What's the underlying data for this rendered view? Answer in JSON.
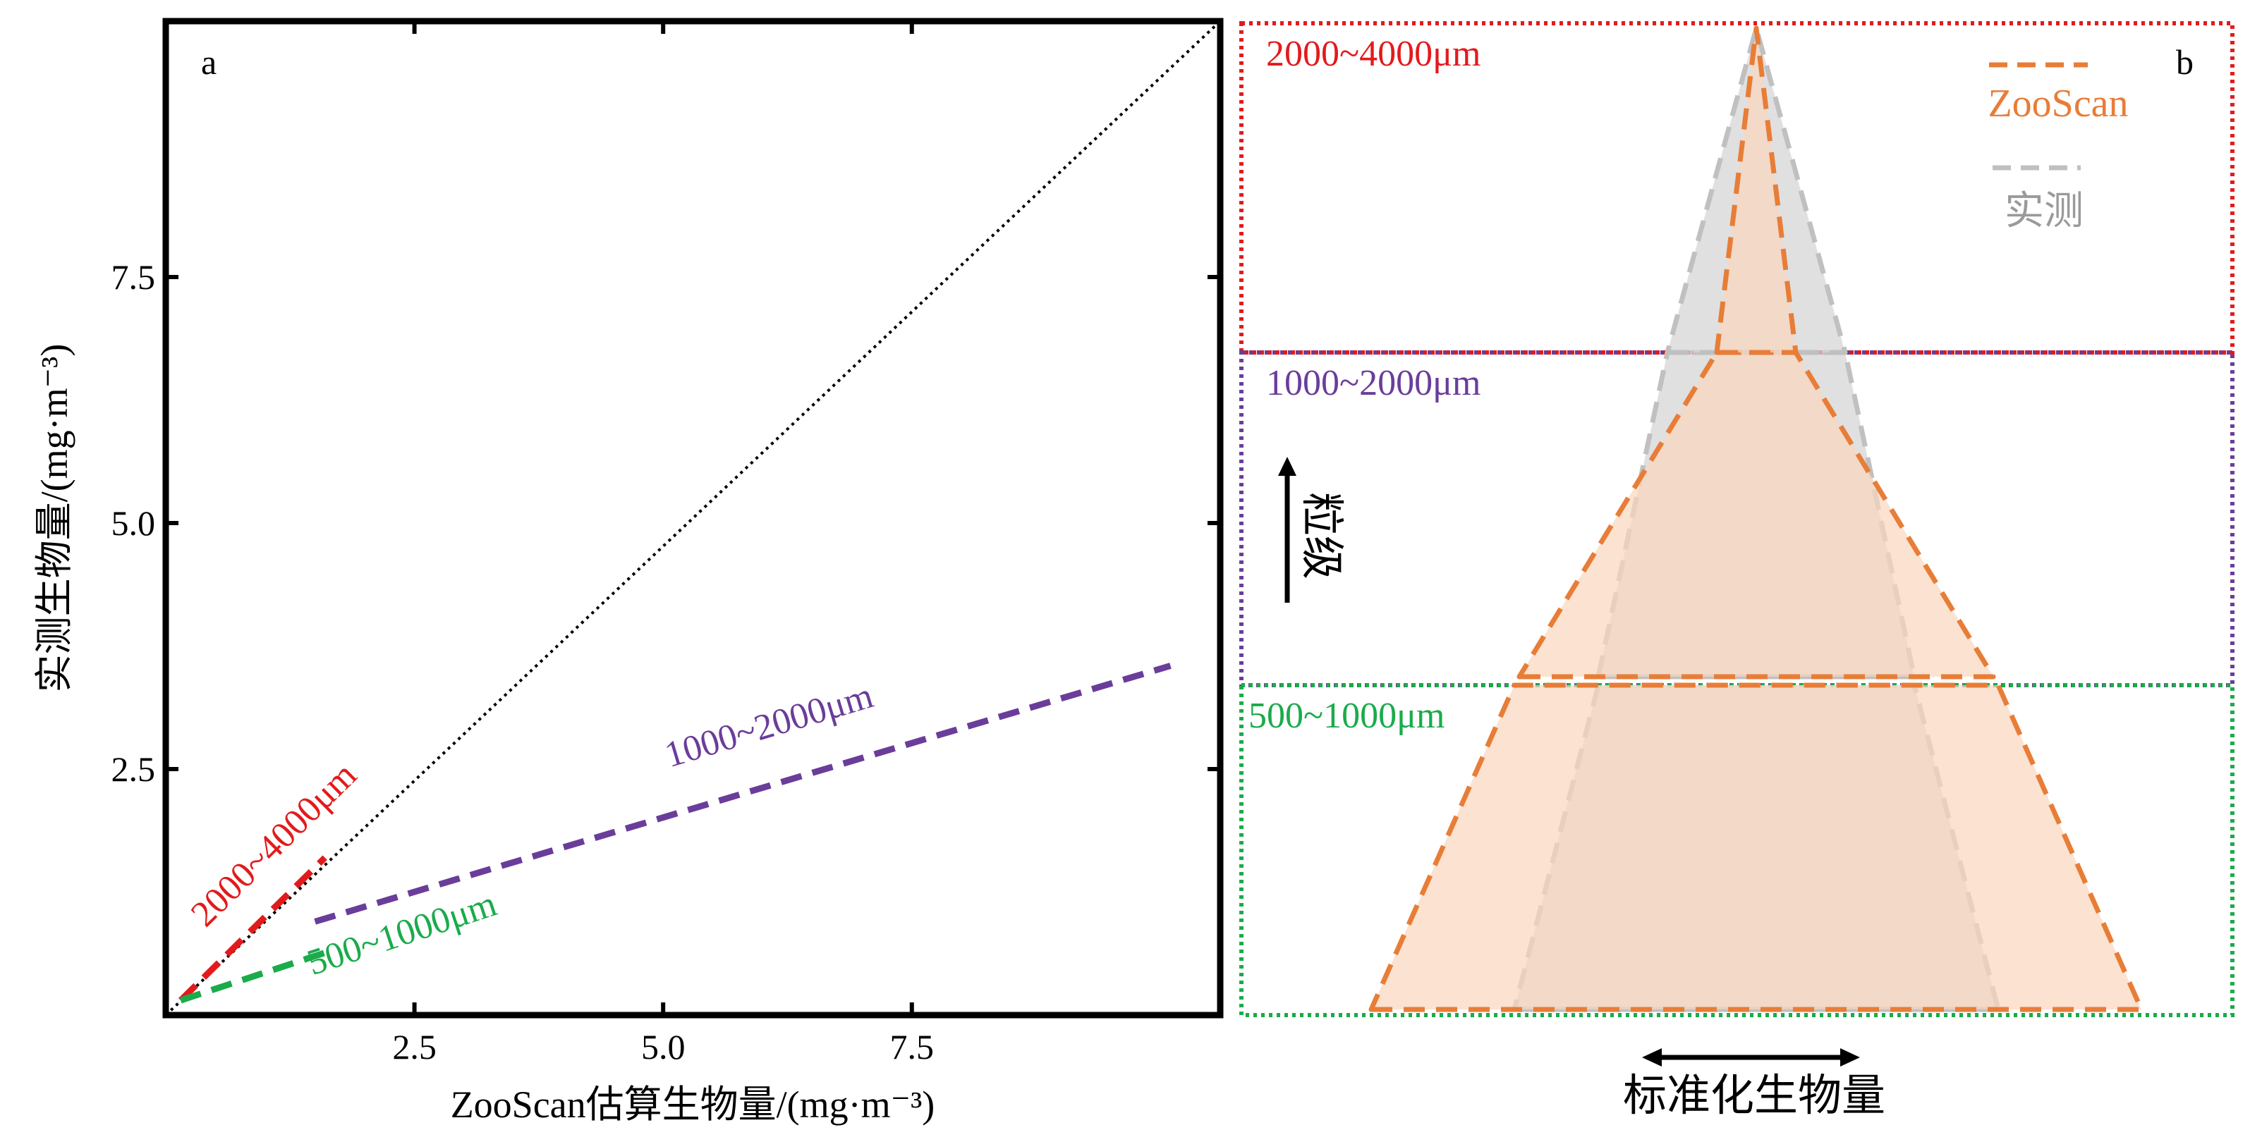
{
  "chart_data": [
    {
      "type": "line",
      "panel_label": "a",
      "xlabel": "ZooScan估算生物量/(mg·m⁻³)",
      "ylabel": "实测生物量/(mg·m⁻³)",
      "xlim": [
        0,
        10.6
      ],
      "ylim": [
        0,
        10.1
      ],
      "xticks": [
        "2.5",
        "5.0",
        "7.5"
      ],
      "yticks": [
        "2.5",
        "5.0",
        "7.5"
      ],
      "grid": false,
      "reference_line": {
        "style": "dotted",
        "color": "#000000",
        "x": [
          0,
          10.6
        ],
        "y": [
          0,
          10.1
        ]
      },
      "series": [
        {
          "name": "2000~4000μm",
          "color": "#e31a1c",
          "style": "dashed",
          "x": [
            0.15,
            1.6
          ],
          "y": [
            0.15,
            1.6
          ]
        },
        {
          "name": "1000~2000μm",
          "color": "#6a3d9a",
          "style": "dashed",
          "x": [
            1.5,
            10.1
          ],
          "y": [
            0.95,
            3.55
          ]
        },
        {
          "name": "500~1000μm",
          "color": "#1aab4b",
          "style": "dashed",
          "x": [
            0.15,
            1.65
          ],
          "y": [
            0.15,
            0.65
          ]
        }
      ]
    },
    {
      "type": "area",
      "panel_label": "b",
      "xlabel": "标准化生物量",
      "ylabel": "粒级",
      "bands": [
        {
          "name": "2000~4000μm",
          "color": "#e31a1c"
        },
        {
          "name": "1000~2000μm",
          "color": "#6a3d9a"
        },
        {
          "name": "500~1000μm",
          "color": "#1aab4b"
        }
      ],
      "series": [
        {
          "name": "ZooScan",
          "color": "#e87d37",
          "fill": "#f9d5bd",
          "half_widths": {
            "500~1000μm": [
              0.78,
              0.49
            ],
            "1000~2000μm": [
              0.48,
              0.08
            ],
            "2000~4000μm": [
              0.08,
              0.0
            ]
          }
        },
        {
          "name": "实测",
          "color": "#c0c0c0",
          "fill": "#d6d6d6",
          "half_widths": {
            "500~1000μm": [
              0.49,
              0.32
            ],
            "1000~2000μm": [
              0.32,
              0.18
            ],
            "2000~4000μm": [
              0.18,
              0.0
            ]
          }
        }
      ],
      "legend": {
        "position": "top-right",
        "entries": [
          "ZooScan",
          "实测"
        ]
      }
    }
  ]
}
